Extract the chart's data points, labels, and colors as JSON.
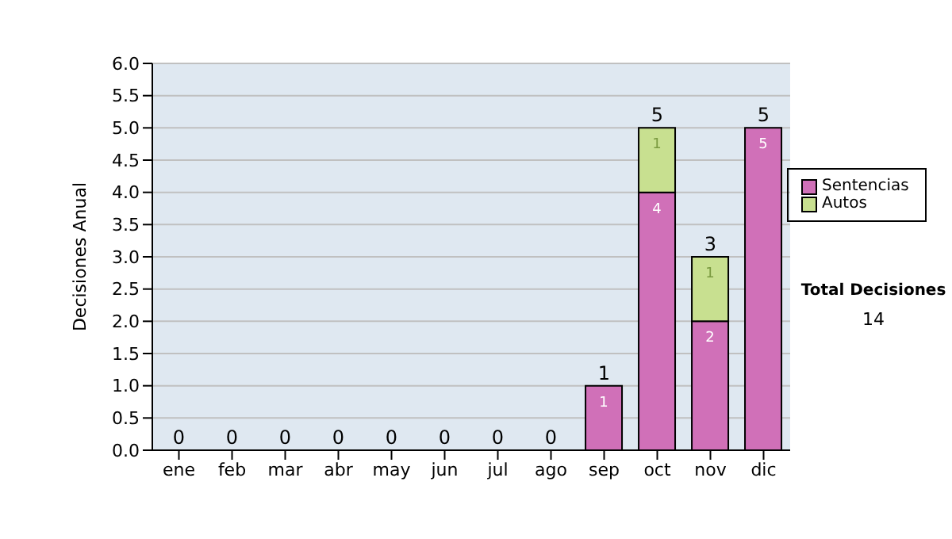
{
  "chart_data": {
    "type": "bar",
    "stacked": true,
    "ylabel": "Decisiones Anual",
    "categories": [
      "ene",
      "feb",
      "mar",
      "abr",
      "may",
      "jun",
      "jul",
      "ago",
      "sep",
      "oct",
      "nov",
      "dic"
    ],
    "series": [
      {
        "name": "Sentencias",
        "color": "#d070b8",
        "values": [
          0,
          0,
          0,
          0,
          0,
          0,
          0,
          0,
          1,
          4,
          2,
          5
        ],
        "value_labels": [
          null,
          null,
          null,
          null,
          null,
          null,
          null,
          null,
          "1",
          "4",
          "2",
          "5"
        ]
      },
      {
        "name": "Autos",
        "color": "#c8e090",
        "values": [
          0,
          0,
          0,
          0,
          0,
          0,
          0,
          0,
          0,
          1,
          1,
          0
        ],
        "value_labels": [
          null,
          null,
          null,
          null,
          null,
          null,
          null,
          null,
          null,
          "1",
          "1",
          null
        ]
      }
    ],
    "totals": [
      "0",
      "0",
      "0",
      "0",
      "0",
      "0",
      "0",
      "0",
      "1",
      "5",
      "3",
      "5"
    ],
    "ylim": [
      0,
      6
    ],
    "yticks": [
      {
        "value": 0,
        "label": "0.0"
      },
      {
        "value": 0.5,
        "label": "0.5"
      },
      {
        "value": 1,
        "label": "1.0"
      },
      {
        "value": 1.5,
        "label": "1.5"
      },
      {
        "value": 2,
        "label": "2.0"
      },
      {
        "value": 2.5,
        "label": "2.5"
      },
      {
        "value": 3,
        "label": "3.0"
      },
      {
        "value": 3.5,
        "label": "3.5"
      },
      {
        "value": 4,
        "label": "4.0"
      },
      {
        "value": 4.5,
        "label": "4.5"
      },
      {
        "value": 5,
        "label": "5.0"
      },
      {
        "value": 5.5,
        "label": "5.5"
      },
      {
        "value": 6,
        "label": "6.0"
      }
    ],
    "grid": "y",
    "legend": "right",
    "annotations": [
      "Total Decisiones",
      "14"
    ]
  }
}
